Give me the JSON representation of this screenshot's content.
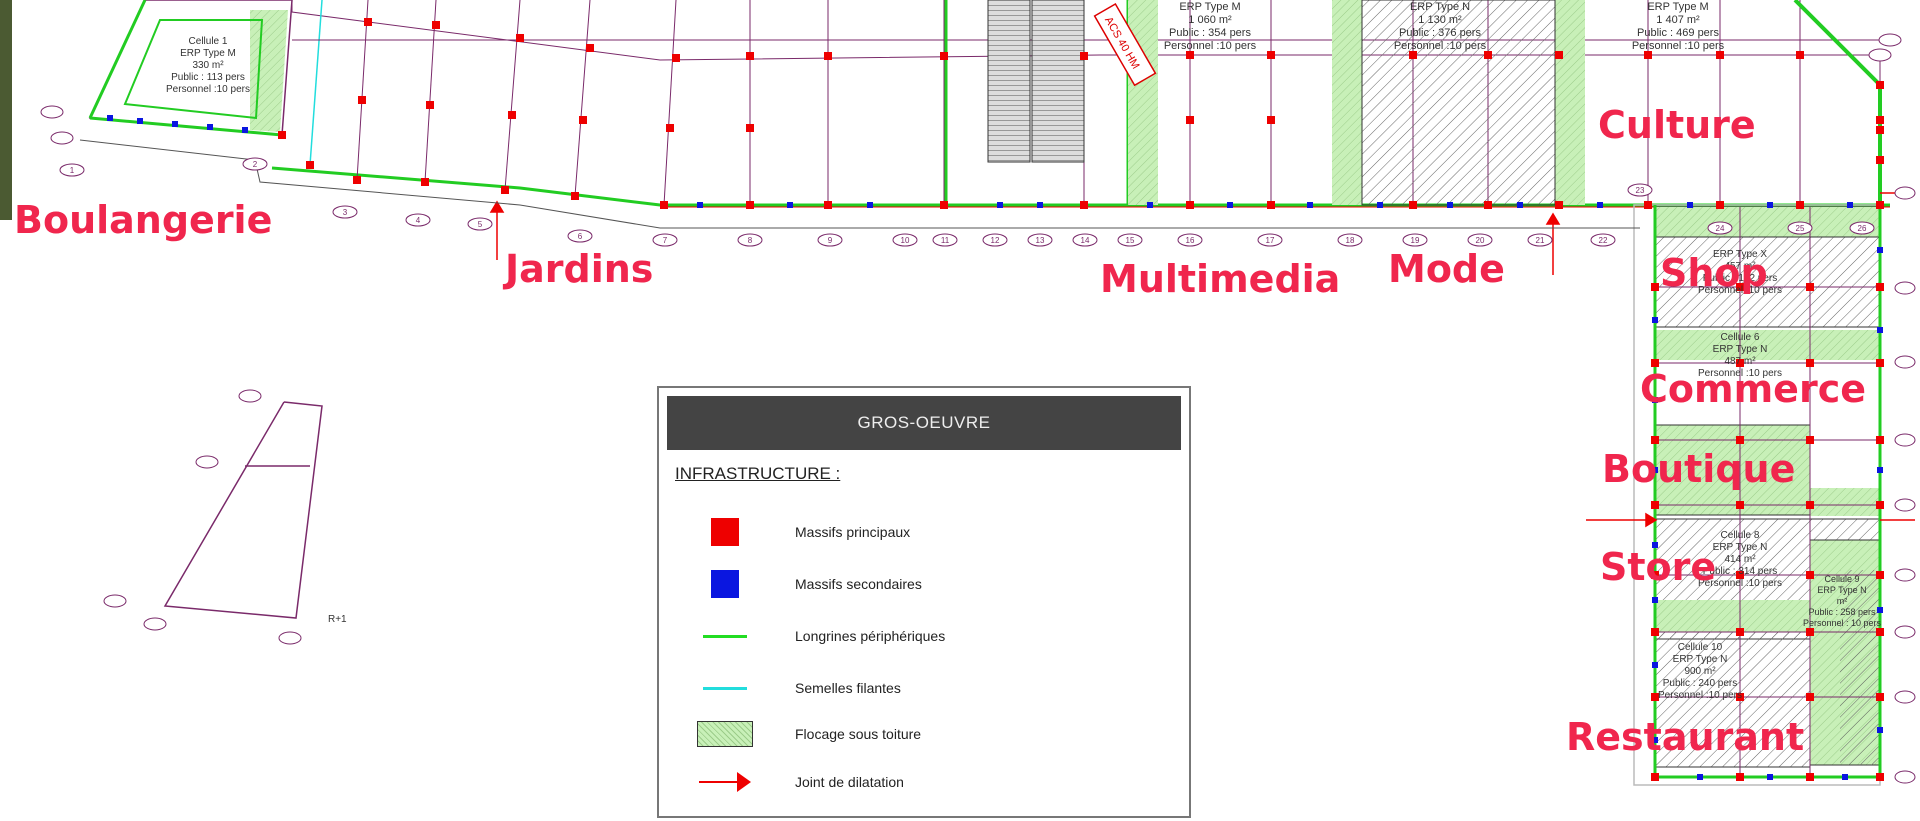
{
  "zones": [
    {
      "name": "Boulangerie"
    },
    {
      "name": "Jardins"
    },
    {
      "name": "Multimedia"
    },
    {
      "name": "Mode"
    },
    {
      "name": "Culture"
    },
    {
      "name": "Shop"
    },
    {
      "name": "Commerce"
    },
    {
      "name": "Boutique"
    },
    {
      "name": "Store"
    },
    {
      "name": "Restaurant"
    }
  ],
  "cells": {
    "cell1": [
      "Cellule 1",
      "ERP Type M",
      "330 m²",
      "Public : 113 pers",
      "Personnel :10 pers"
    ],
    "cell_multimedia": [
      "ERP Type M",
      "1 060 m²",
      "Public : 354 pers",
      "Personnel :10 pers"
    ],
    "cell_mode": [
      "ERP Type N",
      "1 130 m²",
      "Public : 376 pers",
      "Personnel :10 pers"
    ],
    "cell_culture": [
      "ERP Type M",
      "1 407 m²",
      "Public : 469 pers",
      "Personnel :10 pers"
    ],
    "cell_shop": [
      "ERP Type X",
      "457 m²",
      "Public : 152 pers",
      "Personnel :10 pers"
    ],
    "cell_commerce": [
      "Cellule 6",
      "ERP Type N",
      "487 m²",
      "Personnel :10 pers"
    ],
    "cell8": [
      "Cellule 8",
      "ERP Type N",
      "414 m²",
      "Public : 314 pers",
      "Personnel :10 pers"
    ],
    "cell10": [
      "Cellule 10",
      "ERP Type N",
      "900 m²",
      "Public : 240 pers",
      "Personnel :10 pers"
    ],
    "cell9": [
      "Cellule 9",
      "ERP Type N",
      "m²",
      "Public : 258 pers",
      "Personnel : 10 pers"
    ]
  },
  "annotations": {
    "diag_stamp": "ACS 40 HM",
    "extra_axis": "R+1"
  },
  "axis_bubbles": [
    "1",
    "2",
    "3",
    "4",
    "5",
    "6",
    "7",
    "8",
    "9",
    "10",
    "11",
    "12",
    "13",
    "14",
    "15",
    "16",
    "17",
    "18",
    "19",
    "20",
    "21",
    "22",
    "23",
    "24",
    "25",
    "26"
  ],
  "legend": {
    "title": "GROS-OEUVRE",
    "subtitle": "INFRASTRUCTURE :",
    "items": [
      {
        "label": "Massifs principaux",
        "swatch": "red-square",
        "color": "#ee0000"
      },
      {
        "label": "Massifs secondaires",
        "swatch": "blue-square",
        "color": "#0a16e0"
      },
      {
        "label": "Longrines périphériques",
        "swatch": "green-line",
        "color": "#22dd22"
      },
      {
        "label": "Semelles filantes",
        "swatch": "cyan-line",
        "color": "#22dddd"
      },
      {
        "label": "Flocage sous toiture",
        "swatch": "hatched-green",
        "color": "#c8f0b8"
      },
      {
        "label": "Joint de dilatation",
        "swatch": "red-arrow",
        "color": "#ee0000"
      }
    ]
  },
  "colors": {
    "zone_label": "#f0264d",
    "grid_line": "#7a2a6a",
    "perimeter": "#22cc22",
    "massif_main": "#ee0000",
    "massif_secondary": "#0a16e0",
    "flocage": "#c8f0b8"
  }
}
